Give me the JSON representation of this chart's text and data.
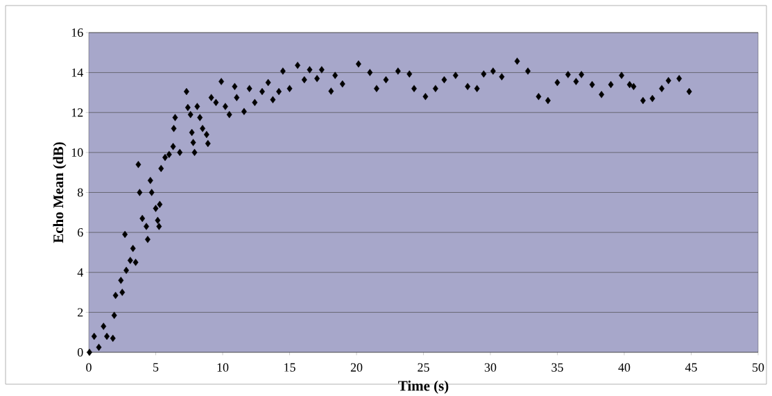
{
  "chart_data": {
    "type": "scatter",
    "xlabel": "Time (s)",
    "ylabel": "Echo Mean (dB)",
    "xlim": [
      0,
      50
    ],
    "ylim": [
      0,
      16
    ],
    "xticks": [
      0,
      5,
      10,
      15,
      20,
      25,
      30,
      35,
      40,
      45,
      50
    ],
    "yticks": [
      0,
      2,
      4,
      6,
      8,
      10,
      12,
      14,
      16
    ],
    "grid": "y",
    "marker": "diamond",
    "series": [
      {
        "color": "#000000",
        "x": [
          0.05,
          0.4,
          0.75,
          1.1,
          1.35,
          1.8,
          1.9,
          2.0,
          2.5,
          2.4,
          2.8,
          3.1,
          3.5,
          3.3,
          2.7,
          3.7,
          3.8,
          4.0,
          4.3,
          4.4,
          4.6,
          4.7,
          5.0,
          5.15,
          5.3,
          5.25,
          5.4,
          5.7,
          6.0,
          6.3,
          6.45,
          6.35,
          6.8,
          7.3,
          7.4,
          7.6,
          7.7,
          7.8,
          7.9,
          8.1,
          8.3,
          8.5,
          8.8,
          8.9,
          9.15,
          9.5,
          9.9,
          10.2,
          10.5,
          10.9,
          11.05,
          11.6,
          12.0,
          12.4,
          12.95,
          13.4,
          13.75,
          14.2,
          14.5,
          15.0,
          15.6,
          16.1,
          16.5,
          17.05,
          17.4,
          18.1,
          18.4,
          18.95,
          20.15,
          21.0,
          21.5,
          22.2,
          23.1,
          23.95,
          24.3,
          25.15,
          25.9,
          26.55,
          27.4,
          28.3,
          29.0,
          29.5,
          30.2,
          30.85,
          32.0,
          32.8,
          33.6,
          34.3,
          35.0,
          35.8,
          36.4,
          36.8,
          37.6,
          38.3,
          39.0,
          39.8,
          40.4,
          40.7,
          41.4,
          42.1,
          42.8,
          43.3,
          44.1,
          44.85
        ],
        "values": [
          0,
          0.8,
          0.25,
          1.3,
          0.8,
          0.7,
          1.85,
          2.85,
          3.0,
          3.6,
          4.1,
          4.6,
          4.5,
          5.2,
          5.9,
          9.4,
          8.0,
          6.7,
          6.3,
          5.65,
          8.6,
          8.0,
          7.2,
          6.6,
          7.4,
          6.3,
          9.2,
          9.75,
          9.9,
          10.3,
          11.75,
          11.2,
          10.0,
          13.05,
          12.25,
          11.9,
          11.0,
          10.5,
          10.0,
          12.3,
          11.75,
          11.2,
          10.9,
          10.45,
          12.75,
          12.5,
          13.55,
          12.3,
          11.9,
          13.3,
          12.75,
          12.05,
          13.2,
          12.5,
          13.05,
          13.5,
          12.64,
          13.05,
          14.07,
          13.2,
          14.36,
          13.64,
          14.14,
          13.7,
          14.14,
          13.07,
          13.86,
          13.43,
          14.43,
          14.0,
          13.2,
          13.64,
          14.07,
          13.93,
          13.2,
          12.8,
          13.2,
          13.64,
          13.86,
          13.3,
          13.2,
          13.93,
          14.07,
          13.79,
          14.57,
          14.07,
          12.8,
          12.6,
          13.5,
          13.9,
          13.55,
          13.9,
          13.4,
          12.9,
          13.4,
          13.86,
          13.4,
          13.3,
          12.6,
          12.7,
          13.2,
          13.6,
          13.7,
          13.05
        ]
      }
    ]
  }
}
